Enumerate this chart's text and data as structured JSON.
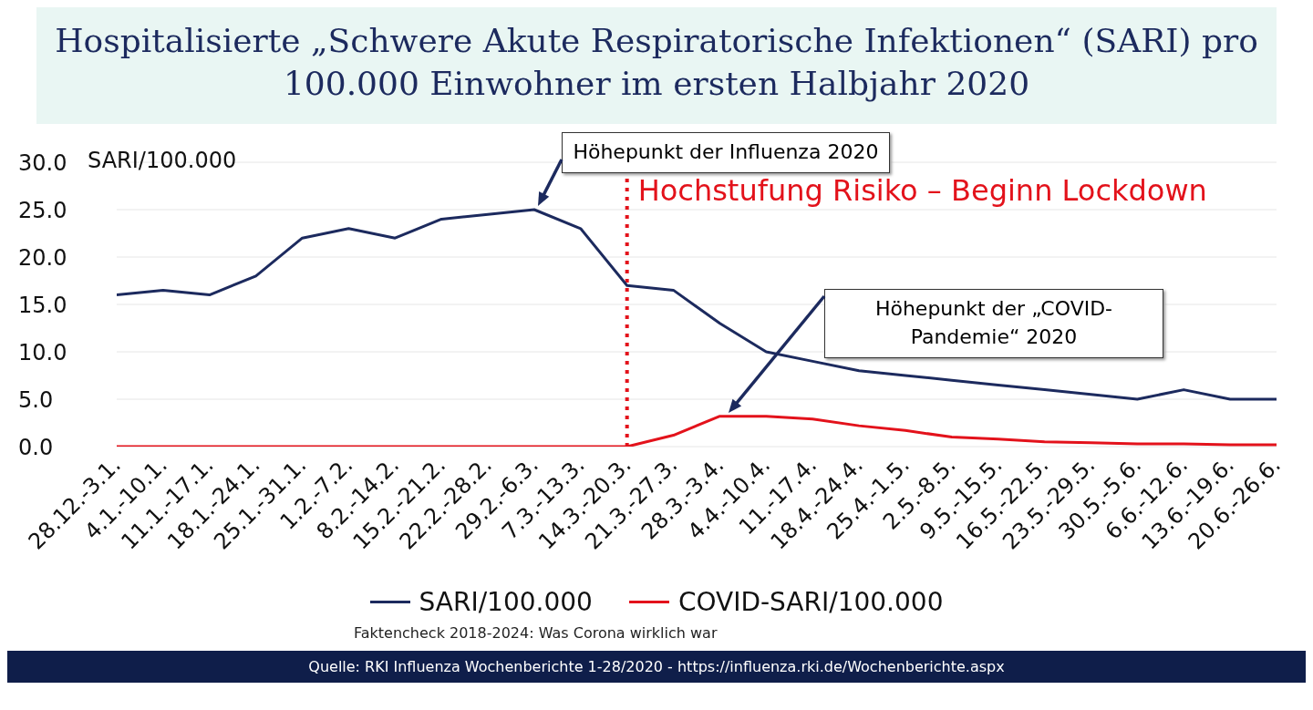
{
  "chart_data": {
    "type": "line",
    "title": "Hospitalisierte „Schwere Akute Respiratorische Infektionen“ (SARI) pro 100.000 Einwohner im ersten Halbjahr 2020",
    "ylabel": "SARI/100.000",
    "categories": [
      "28.12.-3.1.",
      "4.1.-10.1.",
      "11.1.-17.1.",
      "18.1.-24.1.",
      "25.1.-31.1.",
      "1.2.-7.2.",
      "8.2.-14.2.",
      "15.2.-21.2.",
      "22.2.-28.2.",
      "29.2.-6.3.",
      "7.3.-13.3.",
      "14.3.-20.3.",
      "21.3.-27.3.",
      "28.3.-3.4.",
      "4.4.-10.4.",
      "11.-17.4.",
      "18.4.-24.4.",
      "25.4.-1.5.",
      "2.5.-8.5.",
      "9.5.-15.5.",
      "16.5.-22.5.",
      "23.5.-29.5.",
      "30.5.-5.6.",
      "6.6.-12.6.",
      "13.6.-19.6.",
      "20.6.-26.6."
    ],
    "series": [
      {
        "name": "SARI/100.000",
        "color": "#1c2a5e",
        "values": [
          16,
          16.5,
          16,
          18,
          22,
          23,
          22,
          24,
          24.5,
          25,
          23,
          17,
          16.5,
          13,
          10,
          9,
          8,
          7.5,
          7,
          6.5,
          6,
          5.5,
          5,
          6,
          5,
          5
        ]
      },
      {
        "name": "COVID-SARI/100.000",
        "color": "#e3121b",
        "values": [
          0,
          0,
          0,
          0,
          0,
          0,
          0,
          0,
          0,
          0,
          0,
          0,
          1.2,
          3.2,
          3.2,
          2.9,
          2.2,
          1.7,
          1,
          0.8,
          0.5,
          0.4,
          0.3,
          0.3,
          0.2,
          0.2
        ]
      }
    ],
    "ylim": [
      0,
      30
    ],
    "yticks": [
      {
        "value": 0,
        "label": "0.0"
      },
      {
        "value": 5,
        "label": "5.0"
      },
      {
        "value": 10,
        "label": "10.0"
      },
      {
        "value": 15,
        "label": "15.0"
      },
      {
        "value": 20,
        "label": "20.0"
      },
      {
        "value": 25,
        "label": "25.0"
      },
      {
        "value": 30,
        "label": "30.0"
      }
    ],
    "grid": "y",
    "legend": "bottom",
    "marker": "none",
    "line_style": "solid",
    "ref_lines": [
      {
        "axis": "x",
        "value": "14.3.-20.3.",
        "label": "Hochstufung Risiko – Beginn Lockdown",
        "color": "#e3121b",
        "line_style": "dotted"
      }
    ],
    "annotations": [
      {
        "text": "Höhepunkt der Influenza 2020",
        "x": "29.2.-6.3.",
        "y": 25
      },
      "Höhepunkt der „COVID-Pandemie“ 2020",
      "Faktencheck 2018-2024: Was Corona wirklich war",
      "Quelle: RKI Influenza Wochenberichte 1-28/2020 - https://influenza.rki.de/Wochenberichte.aspx"
    ]
  }
}
